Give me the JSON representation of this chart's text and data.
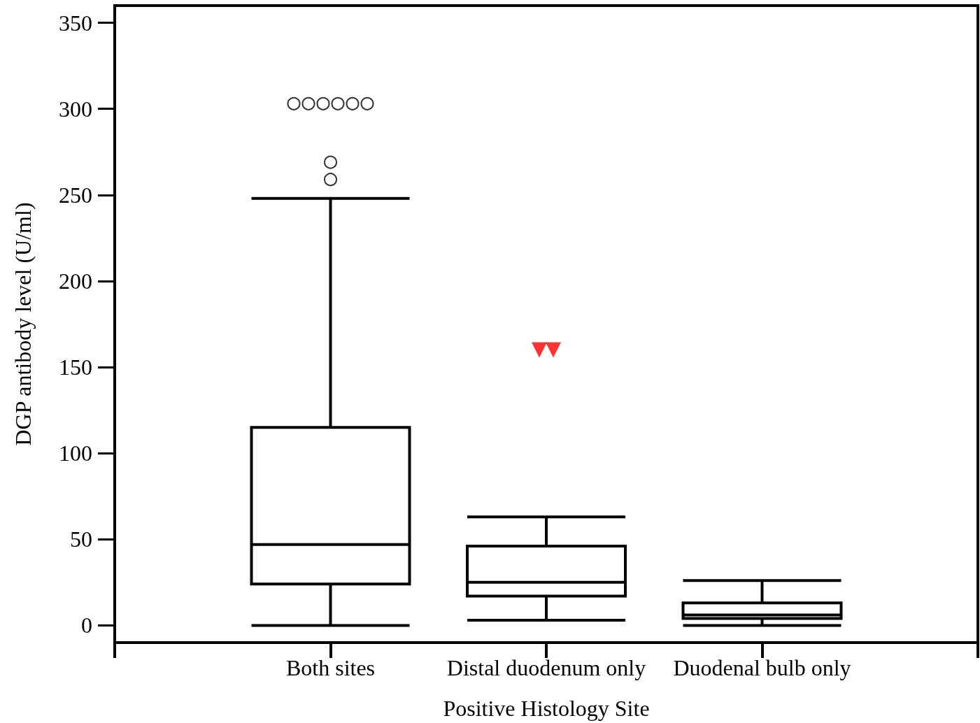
{
  "chart_data": {
    "type": "box",
    "xlabel": "Positive Histology Site",
    "ylabel": "DGP antibody level (U/ml)",
    "categories": [
      "Both sites",
      "Distal duodenum only",
      "Duodenal bulb only"
    ],
    "ylim": [
      -10,
      360
    ],
    "yticks": [
      0,
      50,
      100,
      150,
      200,
      250,
      300,
      350
    ],
    "series": [
      {
        "color": "#000000",
        "marker": "circle",
        "boxes": [
          {
            "low": 0,
            "q1": 24,
            "median": 47,
            "q3": 115,
            "high": 248,
            "outliers": [
              303,
              303,
              303,
              303,
              303,
              303,
              269,
              259
            ]
          },
          {
            "low": 3,
            "q1": 17,
            "median": 25,
            "q3": 46,
            "high": 63
          },
          {
            "low": 0,
            "q1": 4,
            "median": 6,
            "q3": 13,
            "high": 26
          }
        ]
      },
      {
        "type": "scatter",
        "color": "#ff0000",
        "marker": "triangle",
        "x": [
          "Distal duodenum only",
          "Distal duodenum only"
        ],
        "values": [
          160,
          160
        ]
      }
    ]
  }
}
